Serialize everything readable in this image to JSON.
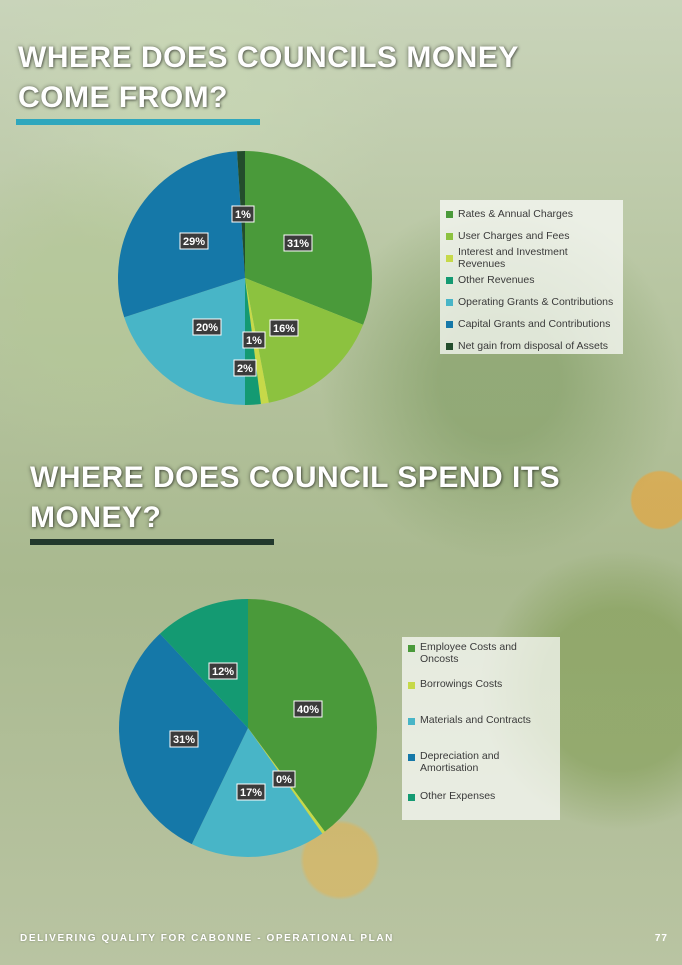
{
  "page": {
    "footer": "DELIVERING QUALITY FOR CABONNE - OPERATIONAL PLAN",
    "page_number": "77",
    "colors": {
      "rule1": "#2fa7bd",
      "rule2": "#23382d"
    }
  },
  "chart_data": [
    {
      "type": "pie",
      "title": "WHERE DOES COUNCILS MONEY COME FROM?",
      "legend_position": "right",
      "categories": [
        "Rates & Annual Charges",
        "User Charges and Fees",
        "Interest and Investment Revenues",
        "Other Revenues",
        "Operating Grants & Contributions",
        "Capital Grants and Contributions",
        "Net gain from disposal of Assets"
      ],
      "values": [
        31,
        16,
        1,
        2,
        20,
        29,
        1
      ],
      "labels": [
        "31%",
        "16%",
        "1%",
        "2%",
        "20%",
        "29%",
        "1%"
      ],
      "colors": [
        "#4a9a3a",
        "#8cc23f",
        "#c6d949",
        "#149a72",
        "#48b5c7",
        "#1578a8",
        "#234d2c"
      ]
    },
    {
      "type": "pie",
      "title": "WHERE DOES COUNCIL SPEND ITS MONEY?",
      "legend_position": "right",
      "categories": [
        "Employee Costs and Oncosts",
        "Borrowings Costs",
        "Materials and Contracts",
        "Depreciation and Amortisation",
        "Other Expenses"
      ],
      "values": [
        40,
        0.4,
        17,
        31,
        12
      ],
      "labels": [
        "40%",
        "0%",
        "17%",
        "31%",
        "12%"
      ],
      "colors": [
        "#4a9a3a",
        "#c6d949",
        "#48b5c7",
        "#1578a8",
        "#149a72"
      ]
    }
  ]
}
